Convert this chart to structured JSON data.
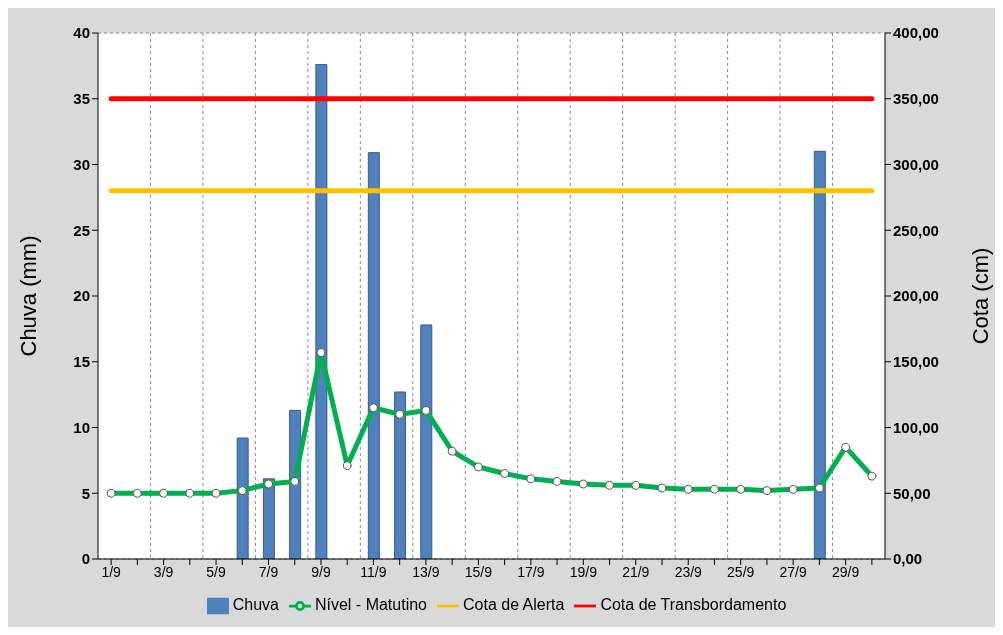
{
  "chart_data": {
    "type": "bar",
    "categories": [
      "1/9",
      null,
      "3/9",
      null,
      "5/9",
      null,
      "7/9",
      null,
      "9/9",
      null,
      "11/9",
      null,
      "13/9",
      null,
      "15/9",
      null,
      "17/9",
      null,
      "19/9",
      null,
      "21/9",
      null,
      "23/9",
      null,
      "25/9",
      null,
      "27/9",
      null,
      "29/9",
      null
    ],
    "ylabel": "Chuva (mm)",
    "y2label": "Cota (cm)",
    "ylim": [
      0,
      40
    ],
    "yticks": [
      0,
      5,
      10,
      15,
      20,
      25,
      30,
      35,
      40
    ],
    "y2lim": [
      0,
      400
    ],
    "y2ticks": [
      {
        "value": 0,
        "label": "0,00"
      },
      {
        "value": 50,
        "label": "50,00"
      },
      {
        "value": 100,
        "label": "100,00"
      },
      {
        "value": 150,
        "label": "150,00"
      },
      {
        "value": 200,
        "label": "200,00"
      },
      {
        "value": 250,
        "label": "250,00"
      },
      {
        "value": 300,
        "label": "300,00"
      },
      {
        "value": 350,
        "label": "350,00"
      },
      {
        "value": 400,
        "label": "400,00"
      }
    ],
    "grid": true,
    "legend": "bottom",
    "series": [
      {
        "name": "Chuva",
        "color": "#4f81bd",
        "values": [
          null,
          null,
          null,
          null,
          null,
          9.2,
          6.1,
          11.3,
          37.6,
          null,
          30.9,
          12.7,
          17.8,
          null,
          null,
          null,
          null,
          null,
          null,
          null,
          null,
          null,
          null,
          null,
          null,
          null,
          null,
          31.0,
          null,
          null
        ]
      },
      {
        "name": "Nível - Matutino",
        "type": "line",
        "axis": "y2",
        "color": "#00b050",
        "marker": "circle",
        "values": [
          50,
          50,
          50,
          50,
          50,
          52,
          57,
          59,
          157,
          71,
          115,
          110,
          113,
          82,
          70,
          65,
          61,
          59,
          57,
          56,
          56,
          54,
          53,
          53,
          53,
          52,
          53,
          54,
          85,
          63
        ]
      },
      {
        "name": "Cota de Alerta",
        "type": "line",
        "axis": "y2",
        "color": "#ffc000",
        "marker": "none",
        "values": [
          280,
          280,
          280,
          280,
          280,
          280,
          280,
          280,
          280,
          280,
          280,
          280,
          280,
          280,
          280,
          280,
          280,
          280,
          280,
          280,
          280,
          280,
          280,
          280,
          280,
          280,
          280,
          280,
          280,
          280
        ]
      },
      {
        "name": "Cota de Transbordamento",
        "type": "line",
        "axis": "y2",
        "color": "#ff0000",
        "marker": "none",
        "values": [
          350,
          350,
          350,
          350,
          350,
          350,
          350,
          350,
          350,
          350,
          350,
          350,
          350,
          350,
          350,
          350,
          350,
          350,
          350,
          350,
          350,
          350,
          350,
          350,
          350,
          350,
          350,
          350,
          350,
          350
        ]
      }
    ]
  }
}
